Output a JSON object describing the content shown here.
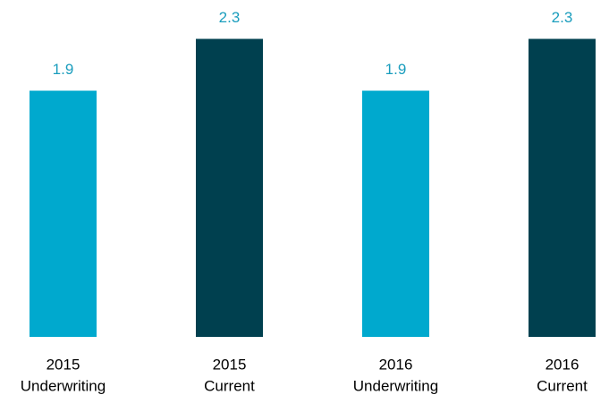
{
  "chart_data": {
    "type": "bar",
    "categories": [
      [
        "2015",
        "Underwriting"
      ],
      [
        "2015",
        "Current"
      ],
      [
        "2016",
        "Underwriting"
      ],
      [
        "2016",
        "Current"
      ]
    ],
    "values": [
      1.9,
      2.3,
      1.9,
      2.3
    ],
    "colors": [
      "#00a9ce",
      "#00404f",
      "#00a9ce",
      "#00404f"
    ],
    "label_color": "#1a9dbd",
    "ylim": [
      0,
      2.6
    ]
  }
}
